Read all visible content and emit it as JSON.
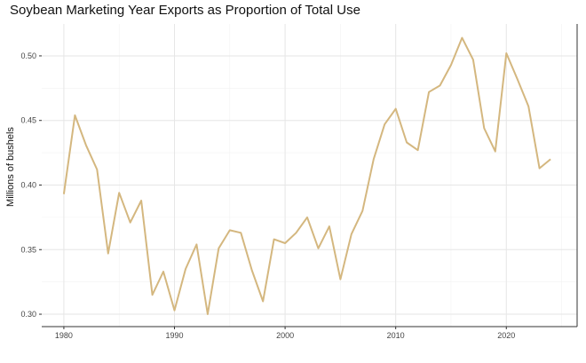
{
  "chart_data": {
    "type": "line",
    "title": "Soybean Marketing Year Exports as Proportion of Total Use",
    "xlabel": "",
    "ylabel": "Millions of bushels",
    "x": [
      1980,
      1981,
      1982,
      1983,
      1984,
      1985,
      1986,
      1987,
      1988,
      1989,
      1990,
      1991,
      1992,
      1993,
      1994,
      1995,
      1996,
      1997,
      1998,
      1999,
      2000,
      2001,
      2002,
      2003,
      2004,
      2005,
      2006,
      2007,
      2008,
      2009,
      2010,
      2011,
      2012,
      2013,
      2014,
      2015,
      2016,
      2017,
      2018,
      2019,
      2020,
      2021,
      2022,
      2023,
      2024
    ],
    "series": [
      {
        "values": [
          0.393,
          0.454,
          0.431,
          0.412,
          0.347,
          0.394,
          0.371,
          0.388,
          0.315,
          0.333,
          0.303,
          0.335,
          0.354,
          0.3,
          0.351,
          0.365,
          0.363,
          0.334,
          0.31,
          0.358,
          0.355,
          0.363,
          0.375,
          0.351,
          0.368,
          0.327,
          0.362,
          0.38,
          0.42,
          0.447,
          0.459,
          0.433,
          0.427,
          0.472,
          0.477,
          0.493,
          0.514,
          0.497,
          0.444,
          0.426,
          0.502,
          0.482,
          0.461,
          0.413,
          0.42
        ],
        "color": "#D4B77F"
      }
    ],
    "xticks": [
      "1980",
      "1990",
      "2000",
      "2010",
      "2020"
    ],
    "yticks": [
      "0.30",
      "0.35",
      "0.40",
      "0.45",
      "0.50"
    ],
    "xlim": [
      1978,
      2026.4
    ],
    "ylim": [
      0.2904,
      0.5247
    ],
    "grid": true,
    "legend": "none"
  }
}
